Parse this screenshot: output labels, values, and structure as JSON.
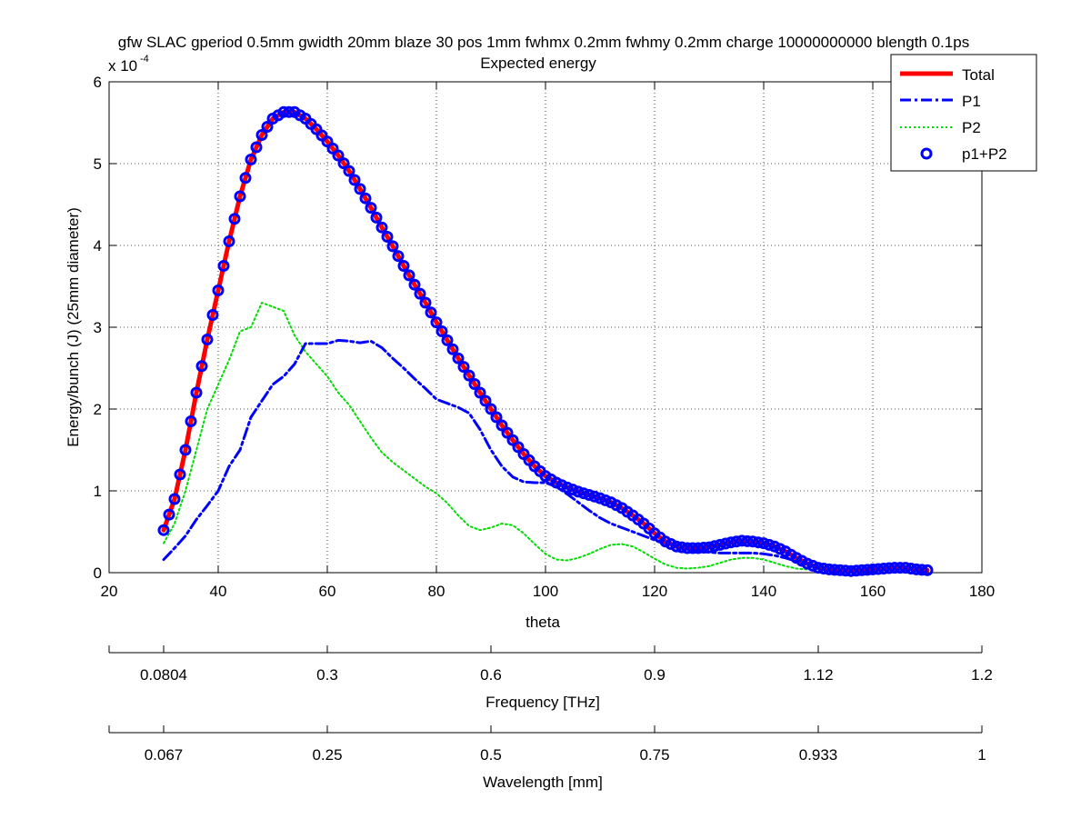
{
  "chart_data": {
    "type": "line",
    "title": "gfw SLAC gperiod 0.5mm gwidth 20mm blaze 30 pos 1mm fwhmx 0.2mm fwhmy 0.2mm charge 10000000000 blength 0.1ps",
    "subtitle": "Expected energy",
    "xlabel": "theta",
    "ylabel": "Energy/bunch (J) (25mm diameter)",
    "y_exponent_label": "x 10",
    "y_exponent": "-4",
    "y_scale": 0.0001,
    "xlim": [
      20,
      180
    ],
    "ylim": [
      0,
      6
    ],
    "x_ticks": [
      "20",
      "40",
      "60",
      "80",
      "100",
      "120",
      "140",
      "160",
      "180"
    ],
    "y_ticks": [
      "0",
      "1",
      "2",
      "3",
      "4",
      "5",
      "6"
    ],
    "grid": true,
    "legend_position": "top-right",
    "secondary_axes": [
      {
        "label": "Frequency [THz]",
        "ticks": [
          {
            "theta": 30,
            "label": "0.0804"
          },
          {
            "theta": 60,
            "label": "0.3"
          },
          {
            "theta": 90,
            "label": "0.6"
          },
          {
            "theta": 120,
            "label": "0.9"
          },
          {
            "theta": 150,
            "label": "1.12"
          },
          {
            "theta": 180,
            "label": "1.2"
          }
        ]
      },
      {
        "label": "Wavelength [mm]",
        "ticks": [
          {
            "theta": 30,
            "label": "0.067"
          },
          {
            "theta": 60,
            "label": "0.25"
          },
          {
            "theta": 90,
            "label": "0.5"
          },
          {
            "theta": 120,
            "label": "0.75"
          },
          {
            "theta": 150,
            "label": "0.933"
          },
          {
            "theta": 180,
            "label": "1"
          }
        ]
      }
    ],
    "series": [
      {
        "name": "Total",
        "style": "solid",
        "color": "#ff0000",
        "points": [
          [
            30,
            0.52
          ],
          [
            32,
            0.9
          ],
          [
            34,
            1.5
          ],
          [
            36,
            2.2
          ],
          [
            38,
            2.85
          ],
          [
            40,
            3.45
          ],
          [
            42,
            4.05
          ],
          [
            44,
            4.6
          ],
          [
            46,
            5.05
          ],
          [
            48,
            5.35
          ],
          [
            50,
            5.55
          ],
          [
            52,
            5.63
          ],
          [
            54,
            5.63
          ],
          [
            56,
            5.55
          ],
          [
            58,
            5.42
          ],
          [
            60,
            5.27
          ],
          [
            62,
            5.1
          ],
          [
            64,
            4.91
          ],
          [
            66,
            4.69
          ],
          [
            68,
            4.46
          ],
          [
            70,
            4.22
          ],
          [
            72,
            3.99
          ],
          [
            74,
            3.75
          ],
          [
            76,
            3.52
          ],
          [
            78,
            3.3
          ],
          [
            80,
            3.06
          ],
          [
            82,
            2.84
          ],
          [
            84,
            2.62
          ],
          [
            86,
            2.41
          ],
          [
            88,
            2.2
          ],
          [
            90,
            2.0
          ],
          [
            92,
            1.8
          ],
          [
            94,
            1.62
          ],
          [
            96,
            1.45
          ],
          [
            98,
            1.3
          ],
          [
            100,
            1.18
          ],
          [
            102,
            1.1
          ],
          [
            104,
            1.04
          ],
          [
            106,
            0.99
          ],
          [
            108,
            0.95
          ],
          [
            110,
            0.91
          ],
          [
            112,
            0.86
          ],
          [
            114,
            0.79
          ],
          [
            116,
            0.7
          ],
          [
            118,
            0.6
          ],
          [
            120,
            0.48
          ],
          [
            122,
            0.38
          ],
          [
            124,
            0.32
          ],
          [
            126,
            0.3
          ],
          [
            128,
            0.3
          ],
          [
            130,
            0.31
          ],
          [
            132,
            0.34
          ],
          [
            134,
            0.37
          ],
          [
            136,
            0.39
          ],
          [
            138,
            0.38
          ],
          [
            140,
            0.36
          ],
          [
            142,
            0.32
          ],
          [
            144,
            0.26
          ],
          [
            146,
            0.18
          ],
          [
            148,
            0.11
          ],
          [
            150,
            0.06
          ],
          [
            152,
            0.04
          ],
          [
            154,
            0.03
          ],
          [
            156,
            0.02
          ],
          [
            158,
            0.03
          ],
          [
            160,
            0.04
          ],
          [
            162,
            0.05
          ],
          [
            164,
            0.06
          ],
          [
            166,
            0.06
          ],
          [
            168,
            0.04
          ],
          [
            170,
            0.03
          ]
        ]
      },
      {
        "name": "P1",
        "style": "dashdot",
        "color": "#0000ff",
        "points": [
          [
            30,
            0.16
          ],
          [
            32,
            0.3
          ],
          [
            34,
            0.45
          ],
          [
            36,
            0.65
          ],
          [
            38,
            0.82
          ],
          [
            40,
            1.0
          ],
          [
            42,
            1.3
          ],
          [
            44,
            1.5
          ],
          [
            46,
            1.9
          ],
          [
            48,
            2.1
          ],
          [
            50,
            2.3
          ],
          [
            52,
            2.4
          ],
          [
            54,
            2.55
          ],
          [
            56,
            2.8
          ],
          [
            58,
            2.8
          ],
          [
            60,
            2.8
          ],
          [
            62,
            2.84
          ],
          [
            64,
            2.83
          ],
          [
            66,
            2.81
          ],
          [
            68,
            2.83
          ],
          [
            70,
            2.75
          ],
          [
            72,
            2.62
          ],
          [
            74,
            2.5
          ],
          [
            76,
            2.37
          ],
          [
            78,
            2.25
          ],
          [
            80,
            2.12
          ],
          [
            82,
            2.07
          ],
          [
            84,
            2.02
          ],
          [
            86,
            1.95
          ],
          [
            88,
            1.75
          ],
          [
            90,
            1.5
          ],
          [
            92,
            1.3
          ],
          [
            94,
            1.17
          ],
          [
            96,
            1.11
          ],
          [
            98,
            1.1
          ],
          [
            100,
            1.1
          ],
          [
            102,
            1.05
          ],
          [
            104,
            0.96
          ],
          [
            106,
            0.86
          ],
          [
            108,
            0.76
          ],
          [
            110,
            0.67
          ],
          [
            112,
            0.6
          ],
          [
            114,
            0.55
          ],
          [
            116,
            0.5
          ],
          [
            118,
            0.45
          ],
          [
            120,
            0.4
          ],
          [
            122,
            0.36
          ],
          [
            124,
            0.32
          ],
          [
            126,
            0.29
          ],
          [
            128,
            0.26
          ],
          [
            130,
            0.25
          ],
          [
            132,
            0.24
          ],
          [
            134,
            0.24
          ],
          [
            136,
            0.24
          ],
          [
            138,
            0.24
          ],
          [
            140,
            0.23
          ],
          [
            142,
            0.21
          ],
          [
            144,
            0.18
          ],
          [
            146,
            0.14
          ],
          [
            148,
            0.1
          ],
          [
            150,
            0.07
          ]
        ]
      },
      {
        "name": "P2",
        "style": "dotted",
        "color": "#00dd00",
        "points": [
          [
            30,
            0.36
          ],
          [
            32,
            0.6
          ],
          [
            34,
            1.0
          ],
          [
            36,
            1.5
          ],
          [
            38,
            2.0
          ],
          [
            40,
            2.3
          ],
          [
            42,
            2.6
          ],
          [
            44,
            2.95
          ],
          [
            46,
            3.0
          ],
          [
            48,
            3.3
          ],
          [
            50,
            3.25
          ],
          [
            52,
            3.2
          ],
          [
            54,
            2.9
          ],
          [
            56,
            2.7
          ],
          [
            58,
            2.55
          ],
          [
            60,
            2.4
          ],
          [
            62,
            2.2
          ],
          [
            64,
            2.05
          ],
          [
            66,
            1.85
          ],
          [
            68,
            1.65
          ],
          [
            70,
            1.47
          ],
          [
            72,
            1.35
          ],
          [
            74,
            1.25
          ],
          [
            76,
            1.15
          ],
          [
            78,
            1.05
          ],
          [
            80,
            0.97
          ],
          [
            82,
            0.85
          ],
          [
            84,
            0.7
          ],
          [
            86,
            0.57
          ],
          [
            88,
            0.52
          ],
          [
            90,
            0.55
          ],
          [
            92,
            0.6
          ],
          [
            94,
            0.58
          ],
          [
            96,
            0.48
          ],
          [
            98,
            0.35
          ],
          [
            100,
            0.23
          ],
          [
            102,
            0.16
          ],
          [
            104,
            0.15
          ],
          [
            106,
            0.18
          ],
          [
            108,
            0.23
          ],
          [
            110,
            0.29
          ],
          [
            112,
            0.34
          ],
          [
            114,
            0.35
          ],
          [
            116,
            0.32
          ],
          [
            118,
            0.25
          ],
          [
            120,
            0.17
          ],
          [
            122,
            0.1
          ],
          [
            124,
            0.06
          ],
          [
            126,
            0.05
          ],
          [
            128,
            0.06
          ],
          [
            130,
            0.08
          ],
          [
            132,
            0.12
          ],
          [
            134,
            0.16
          ],
          [
            136,
            0.18
          ],
          [
            138,
            0.18
          ],
          [
            140,
            0.16
          ],
          [
            142,
            0.12
          ],
          [
            144,
            0.08
          ],
          [
            146,
            0.05
          ],
          [
            148,
            0.04
          ],
          [
            150,
            0.03
          ]
        ]
      },
      {
        "name": "p1+P2",
        "style": "markers",
        "color": "#0000ff",
        "marker_step": 1
      }
    ]
  }
}
